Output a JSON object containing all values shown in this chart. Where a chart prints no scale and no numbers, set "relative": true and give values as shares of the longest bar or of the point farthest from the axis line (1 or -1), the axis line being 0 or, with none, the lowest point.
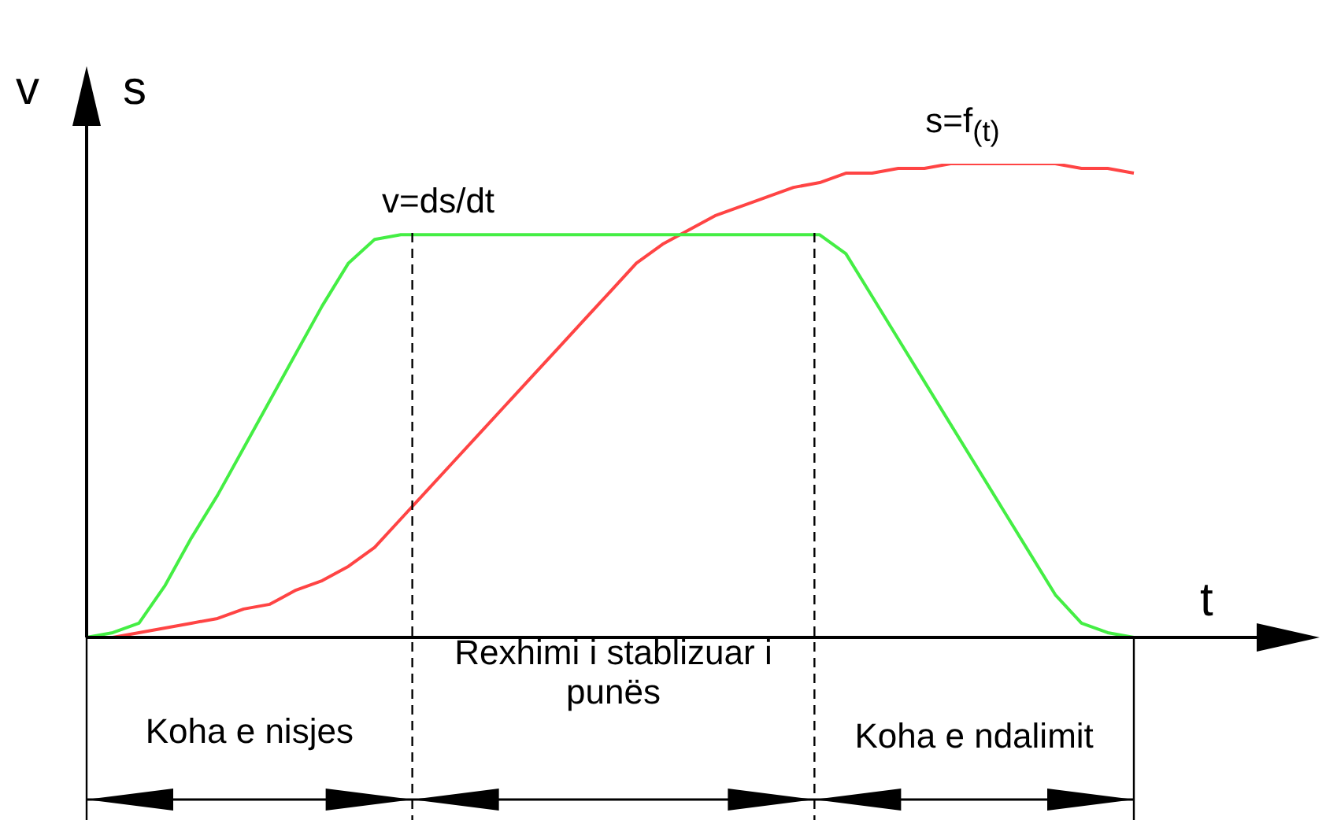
{
  "chart_data": {
    "type": "line",
    "relative": true,
    "xlabel": "t",
    "ylabel": "v",
    "y2label": "s",
    "categories": [
      null,
      null,
      null,
      null,
      null,
      null,
      null,
      null,
      null,
      null,
      null,
      null,
      null,
      null,
      null,
      null,
      null,
      null,
      null,
      null,
      null,
      null,
      null,
      null,
      null,
      null,
      null,
      null,
      null,
      null,
      null,
      null,
      null,
      null,
      null,
      null,
      null,
      null,
      null,
      null,
      null
    ],
    "series": [
      {
        "name": "v=ds/dt",
        "color": "#44ee44",
        "values": [
          0,
          0.01,
          0.03,
          0.11,
          0.21,
          0.3,
          0.4,
          0.5,
          0.6,
          0.7,
          0.79,
          0.84,
          0.85,
          0.85,
          0.85,
          0.85,
          0.85,
          0.85,
          0.85,
          0.85,
          0.85,
          0.85,
          0.85,
          0.85,
          0.85,
          0.85,
          0.85,
          0.85,
          0.85,
          0.81,
          0.72,
          0.63,
          0.54,
          0.45,
          0.36,
          0.27,
          0.18,
          0.09,
          0.03,
          0.01,
          0
        ]
      },
      {
        "name": "s=f$_{(t)}$",
        "color": "#ff4444",
        "values": [
          0,
          0,
          0.01,
          0.02,
          0.03,
          0.04,
          0.06,
          0.07,
          0.1,
          0.12,
          0.15,
          0.19,
          0.25,
          0.31,
          0.37,
          0.43,
          0.49,
          0.55,
          0.61,
          0.67,
          0.73,
          0.79,
          0.83,
          0.86,
          0.89,
          0.91,
          0.93,
          0.95,
          0.96,
          0.98,
          0.98,
          0.99,
          0.99,
          1,
          1,
          1,
          1,
          1,
          0.99,
          0.99,
          0.98
        ]
      }
    ],
    "annotations": [
      "Koha e nisjes",
      "Rexhimi i stablizuar i punës",
      "Koha e ndalimit"
    ],
    "grid": false,
    "legend": false,
    "marker": "none",
    "line_style": "solid"
  }
}
